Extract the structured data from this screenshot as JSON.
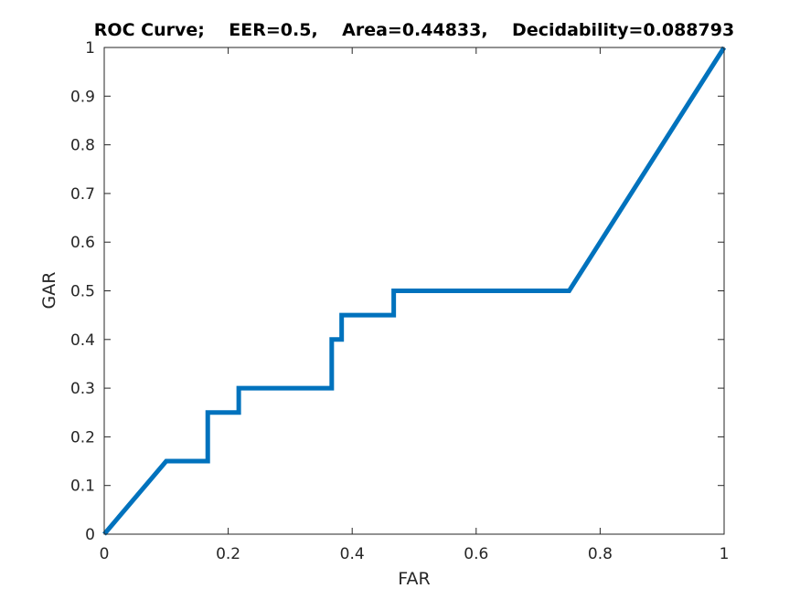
{
  "chart_data": {
    "type": "line",
    "title": "ROC Curve;    EER=0.5,    Area=0.44833,    Decidability=0.088793",
    "xlabel": "FAR",
    "ylabel": "GAR",
    "xlim": [
      0,
      1
    ],
    "ylim": [
      0,
      1
    ],
    "xticks": [
      0,
      0.2,
      0.4,
      0.6,
      0.8,
      1
    ],
    "xtick_labels": [
      "0",
      "0.2",
      "0.4",
      "0.6",
      "0.8",
      "1"
    ],
    "yticks": [
      0,
      0.1,
      0.2,
      0.3,
      0.4,
      0.5,
      0.6,
      0.7,
      0.8,
      0.9,
      1
    ],
    "ytick_labels": [
      "0",
      "0.1",
      "0.2",
      "0.3",
      "0.4",
      "0.5",
      "0.6",
      "0.7",
      "0.8",
      "0.9",
      "1"
    ],
    "grid": false,
    "series": [
      {
        "color": "#0072BD",
        "x": [
          0,
          0.1,
          0.167,
          0.167,
          0.217,
          0.217,
          0.367,
          0.367,
          0.383,
          0.383,
          0.467,
          0.467,
          0.75,
          1
        ],
        "y": [
          0,
          0.15,
          0.15,
          0.25,
          0.25,
          0.3,
          0.3,
          0.4,
          0.4,
          0.45,
          0.45,
          0.5,
          0.5,
          1
        ]
      }
    ]
  }
}
